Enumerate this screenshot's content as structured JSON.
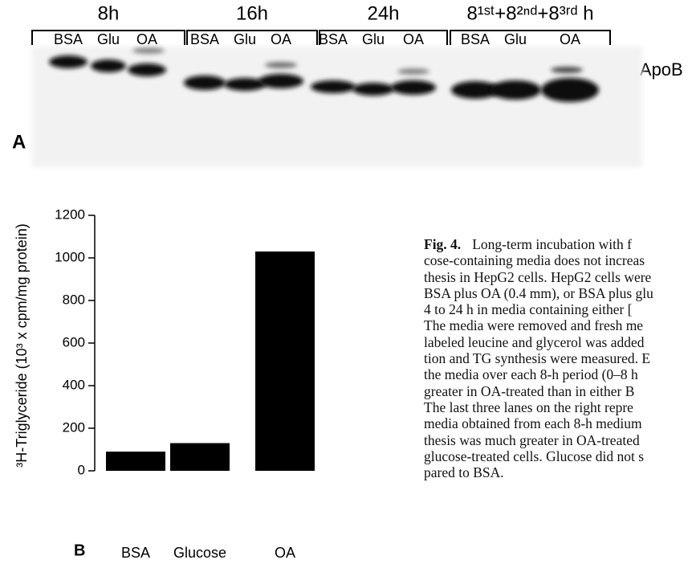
{
  "panel_a": {
    "label": "A",
    "marker": "— ApoB",
    "groups": [
      {
        "label": "8h",
        "lanes": [
          "BSA",
          "Glu",
          "OA"
        ]
      },
      {
        "label": "16h",
        "lanes": [
          "BSA",
          "Glu",
          "OA"
        ]
      },
      {
        "label": "24h",
        "lanes": [
          "BSA",
          "Glu",
          "OA"
        ]
      },
      {
        "label": "8¹ˢᵗ+8²ⁿᵈ+8³ʳᵈ h",
        "lanes": [
          "BSA",
          "Glu",
          "OA"
        ]
      }
    ]
  },
  "chart_data": {
    "type": "bar",
    "panel_label": "B",
    "y_label": "³H-Triglyceride (10³ x cpm/mg protein)",
    "categories": [
      "BSA",
      "Glucose",
      "OA"
    ],
    "values": [
      90,
      130,
      1030
    ],
    "color": "#000000",
    "ylim": [
      0,
      1200
    ],
    "yticks": [
      0,
      200,
      400,
      600,
      800,
      1000,
      1200
    ]
  },
  "caption": {
    "label": "Fig. 4.",
    "lines": [
      "Long-term incubation with f",
      "cose-containing media does not increas",
      "thesis in HepG2 cells. HepG2 cells were",
      "BSA plus OA (0.4 mm), or BSA plus glu",
      "4 to 24 h in media containing either [",
      "The media were removed and fresh me",
      "labeled leucine and glycerol was added",
      "tion and TG synthesis were measured. E",
      "the media over each 8-h period (0–8 h",
      "greater in OA-treated than in either B",
      "The last three lanes on the right repre",
      "media obtained from each 8-h medium",
      "thesis was much greater in OA-treated",
      "glucose-treated cells. Glucose did not s",
      "pared to BSA."
    ]
  }
}
